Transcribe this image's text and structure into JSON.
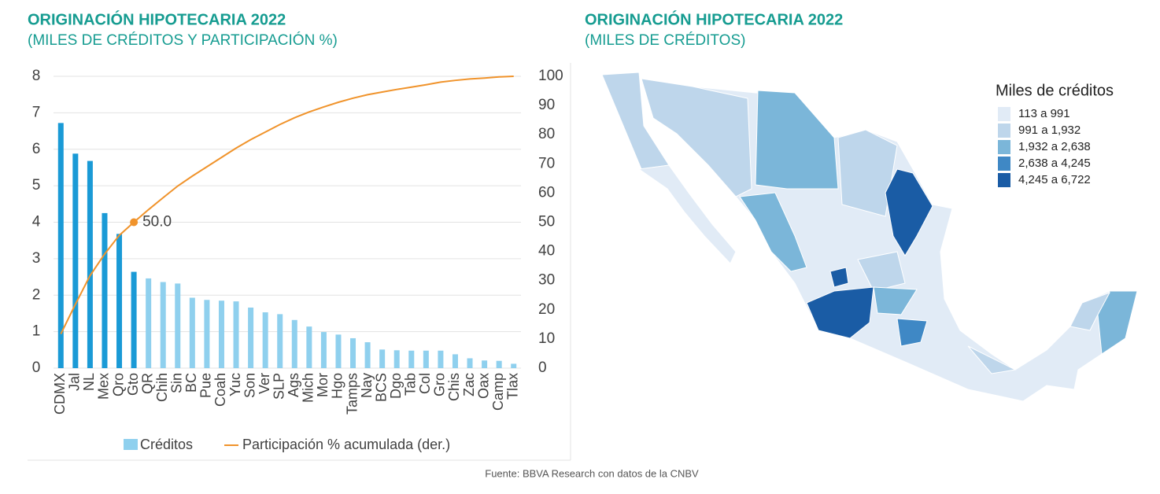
{
  "chart_data": [
    {
      "type": "bar_line",
      "title": "ORIGINACIÓN HIPOTECARIA 2022",
      "subtitle": "(MILES DE CRÉDITOS Y PARTICIPACIÓN %)",
      "categories": [
        "CDMX",
        "Jal",
        "NL",
        "Mex",
        "Qro",
        "Gto",
        "QR",
        "Chih",
        "Sin",
        "BC",
        "Pue",
        "Coah",
        "Yuc",
        "Son",
        "Ver",
        "SLP",
        "Ags",
        "Mich",
        "Mor",
        "Hgo",
        "Tamps",
        "Nay",
        "BCS",
        "Dgo",
        "Tab",
        "Col",
        "Gro",
        "Chis",
        "Zac",
        "Oax",
        "Camp",
        "Tlax"
      ],
      "series": [
        {
          "name": "Créditos",
          "type": "bar",
          "color": "#8fd0ee",
          "colors": [
            "#1a9ad6",
            "#1a9ad6",
            "#1a9ad6",
            "#1a9ad6",
            "#1a9ad6",
            "#1a9ad6",
            "#8fd0ee",
            "#8fd0ee",
            "#8fd0ee",
            "#8fd0ee",
            "#8fd0ee",
            "#8fd0ee",
            "#8fd0ee",
            "#8fd0ee",
            "#8fd0ee",
            "#8fd0ee",
            "#8fd0ee",
            "#8fd0ee",
            "#8fd0ee",
            "#8fd0ee",
            "#8fd0ee",
            "#8fd0ee",
            "#8fd0ee",
            "#8fd0ee",
            "#8fd0ee",
            "#8fd0ee",
            "#8fd0ee",
            "#8fd0ee",
            "#8fd0ee",
            "#8fd0ee",
            "#8fd0ee",
            "#8fd0ee"
          ],
          "values": [
            6.72,
            5.88,
            5.68,
            4.25,
            3.68,
            2.64,
            2.46,
            2.36,
            2.32,
            1.93,
            1.87,
            1.85,
            1.83,
            1.66,
            1.53,
            1.48,
            1.32,
            1.14,
            0.99,
            0.92,
            0.82,
            0.71,
            0.51,
            0.49,
            0.48,
            0.48,
            0.48,
            0.38,
            0.27,
            0.21,
            0.2,
            0.12
          ]
        },
        {
          "name": "Participación % acumulada (der.)",
          "type": "line",
          "axis": "y2",
          "color": "#f0932b",
          "values": [
            11.7,
            21.9,
            31.7,
            39.1,
            45.5,
            50.0,
            54.3,
            58.4,
            62.4,
            65.8,
            69.0,
            72.2,
            75.4,
            78.3,
            80.9,
            83.5,
            85.8,
            87.8,
            89.5,
            91.1,
            92.5,
            93.7,
            94.6,
            95.5,
            96.3,
            97.1,
            98.0,
            98.6,
            99.1,
            99.4,
            99.8,
            100
          ],
          "value_labels": [
            null,
            null,
            null,
            null,
            null,
            "50.0",
            null,
            null,
            null,
            null,
            null,
            null,
            null,
            null,
            null,
            null,
            null,
            null,
            null,
            null,
            null,
            null,
            null,
            null,
            null,
            null,
            null,
            null,
            null,
            null,
            null,
            null
          ]
        }
      ],
      "ylim": [
        0,
        8
      ],
      "yticks": [
        0,
        1,
        2,
        3,
        4,
        5,
        6,
        7,
        8
      ],
      "y2lim": [
        0,
        100
      ],
      "y2ticks": [
        0,
        10,
        20,
        30,
        40,
        50,
        60,
        70,
        80,
        90,
        100
      ],
      "grid": true,
      "legend": "bottom"
    },
    {
      "type": "map",
      "title": "ORIGINACIÓN HIPOTECARIA 2022",
      "subtitle": "(MILES DE CRÉDITOS)",
      "legend_title": "Miles de créditos",
      "bins": [
        {
          "label": "113 a 991",
          "color": "#e1ebf6"
        },
        {
          "label": "991 a 1,932",
          "color": "#bed6eb"
        },
        {
          "label": "1,932 a 2,638",
          "color": "#7bb6d9"
        },
        {
          "label": "2,638 a 4,245",
          "color": "#3f88c5"
        },
        {
          "label": "4,245 a 6,722",
          "color": "#1a5ca5"
        }
      ]
    },
    {
      "type": "note",
      "source": "Fuente: BBVA Research con datos de la CNBV"
    }
  ]
}
